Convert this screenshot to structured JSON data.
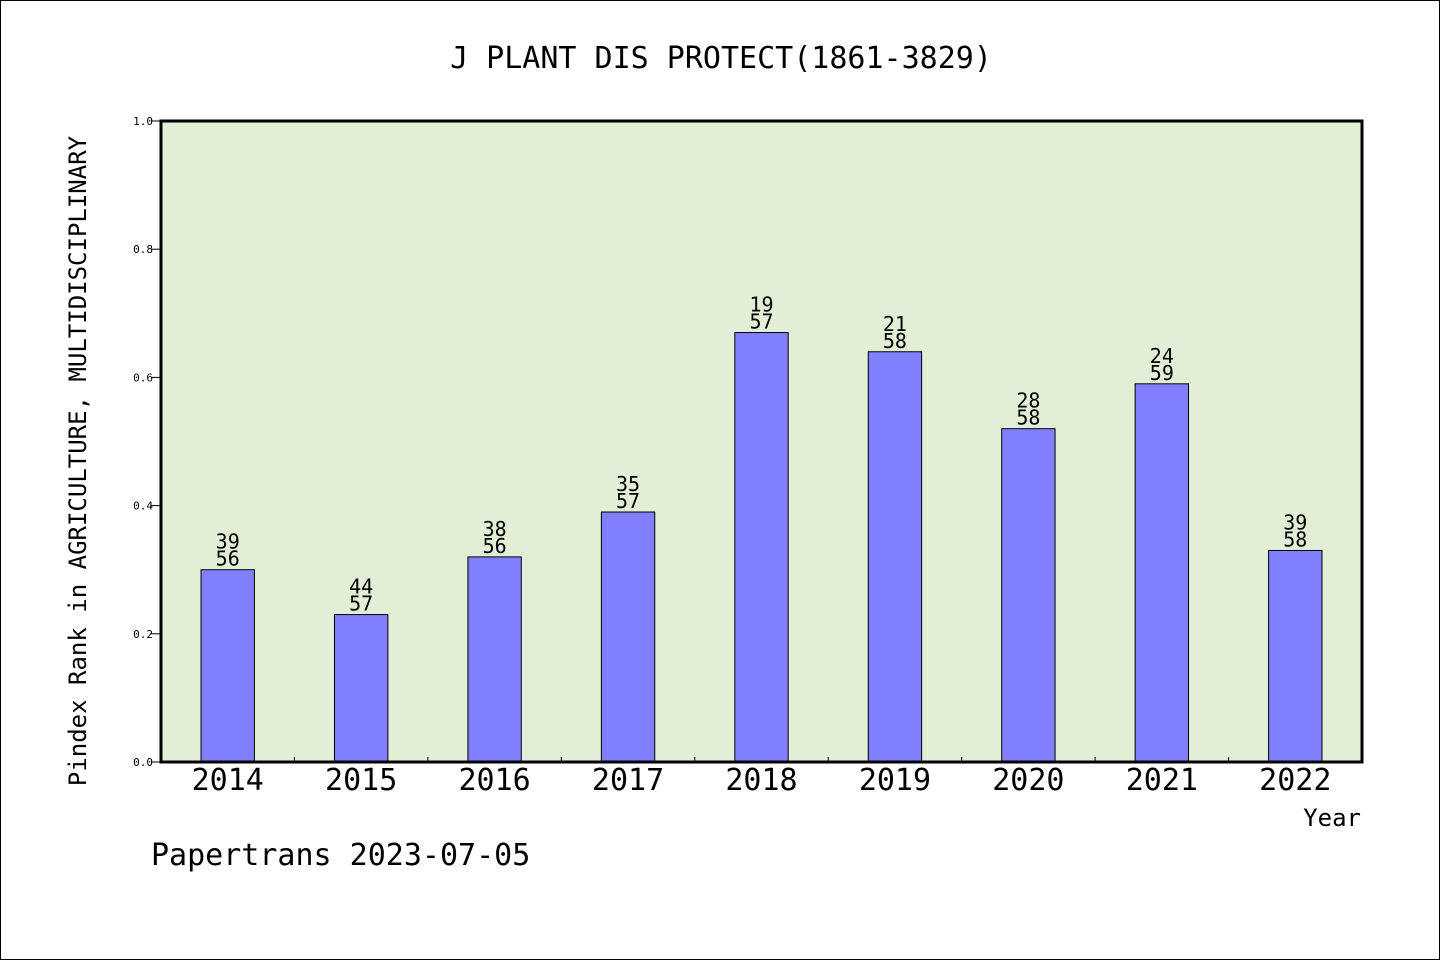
{
  "chart_data": {
    "type": "bar",
    "title": "J PLANT DIS PROTECT(1861-3829)",
    "xlabel": "Year",
    "ylabel": "Pindex Rank in AGRICULTURE, MULTIDISCIPLINARY",
    "ylim": [
      0,
      1.0
    ],
    "yticks": [
      "0.0",
      "0.2",
      "0.4",
      "0.6",
      "0.8",
      "1.0"
    ],
    "ytick_values": [
      0,
      0.2,
      0.4,
      0.6,
      0.8,
      1.0
    ],
    "categories": [
      "2014",
      "2015",
      "2016",
      "2017",
      "2018",
      "2019",
      "2020",
      "2021",
      "2022"
    ],
    "values": [
      0.3,
      0.23,
      0.32,
      0.39,
      0.67,
      0.64,
      0.52,
      0.59,
      0.33
    ],
    "rank_labels": [
      "39",
      "44",
      "38",
      "35",
      "19",
      "21",
      "28",
      "24",
      "39"
    ],
    "total_labels": [
      "56",
      "57",
      "56",
      "57",
      "57",
      "58",
      "58",
      "59",
      "58"
    ],
    "grid": false,
    "legend": "none",
    "colors": {
      "bar_fill": "#8080ff",
      "plot_bg": "#e2efd6",
      "axis": "#000000"
    }
  },
  "footer": {
    "credit": "Papertrans 2023-07-05"
  }
}
